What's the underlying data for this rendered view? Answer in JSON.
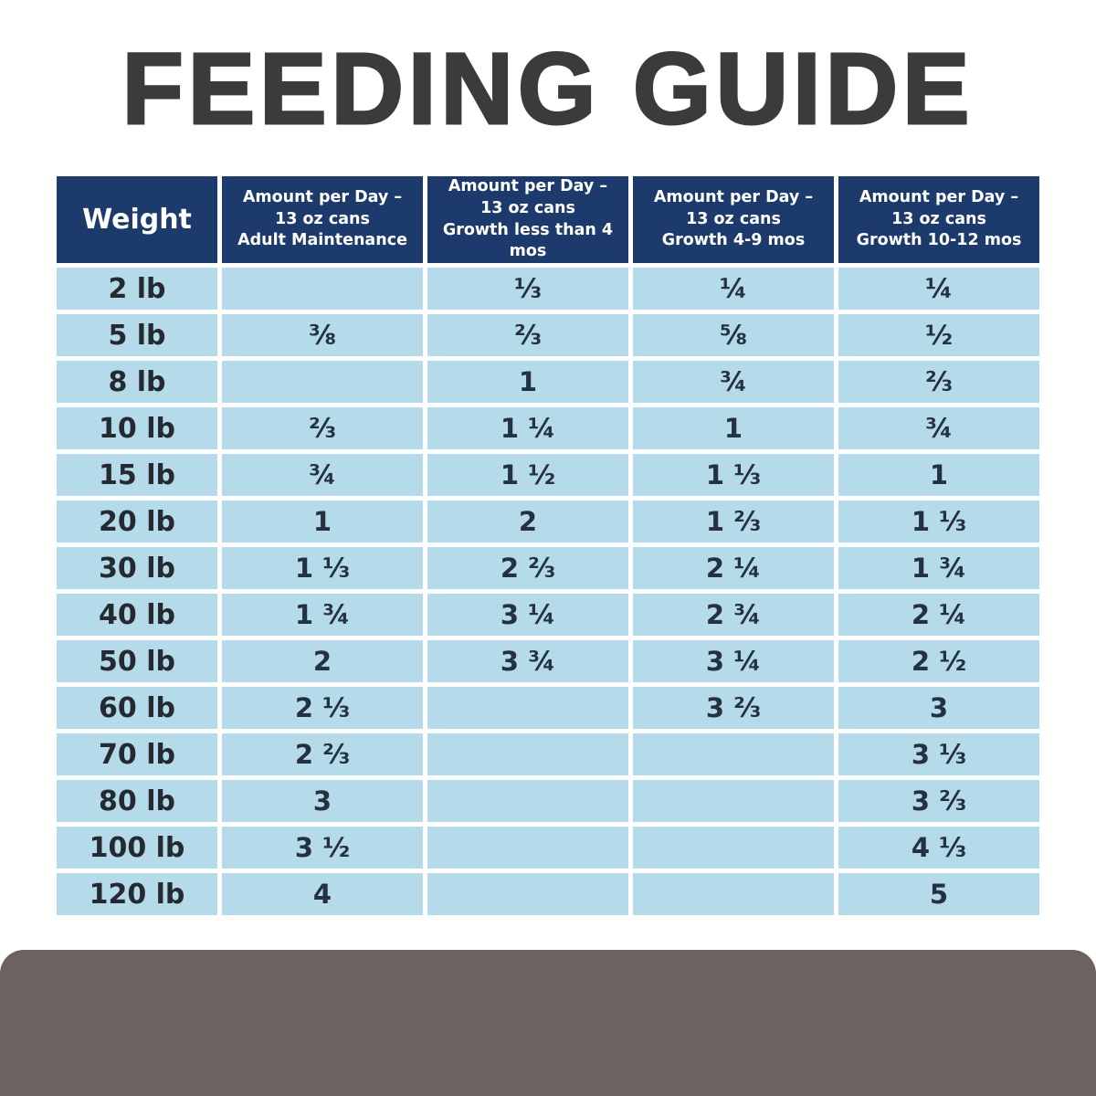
{
  "title": "FEEDING GUIDE",
  "chart_data": {
    "type": "table",
    "title": "FEEDING GUIDE",
    "columns": [
      "Weight",
      "Amount per Day –\n13 oz cans\nAdult Maintenance",
      "Amount per Day –\n13 oz cans\nGrowth less than 4 mos",
      "Amount per Day –\n13 oz cans\nGrowth 4-9 mos",
      "Amount per Day –\n13 oz cans\nGrowth 10-12 mos"
    ],
    "rows": [
      {
        "weight": "2 lb",
        "values": [
          "",
          "⅓",
          "¼",
          "¼"
        ]
      },
      {
        "weight": "5 lb",
        "values": [
          "⅜",
          "⅔",
          "⅝",
          "½"
        ]
      },
      {
        "weight": "8 lb",
        "values": [
          "",
          "1",
          "¾",
          "⅔"
        ]
      },
      {
        "weight": "10 lb",
        "values": [
          "⅔",
          "1 ¼",
          "1",
          "¾"
        ]
      },
      {
        "weight": "15 lb",
        "values": [
          "¾",
          "1 ½",
          "1 ⅓",
          "1"
        ]
      },
      {
        "weight": "20 lb",
        "values": [
          "1",
          "2",
          "1 ⅔",
          "1 ⅓"
        ]
      },
      {
        "weight": "30 lb",
        "values": [
          "1 ⅓",
          "2 ⅔",
          "2 ¼",
          "1 ¾"
        ]
      },
      {
        "weight": "40 lb",
        "values": [
          "1 ¾",
          "3 ¼",
          "2 ¾",
          "2 ¼"
        ]
      },
      {
        "weight": "50 lb",
        "values": [
          "2",
          "3 ¾",
          "3 ¼",
          "2 ½"
        ]
      },
      {
        "weight": "60 lb",
        "values": [
          "2 ⅓",
          "",
          "3 ⅔",
          "3"
        ]
      },
      {
        "weight": "70 lb",
        "values": [
          "2 ⅔",
          "",
          "",
          "3 ⅓"
        ]
      },
      {
        "weight": "80 lb",
        "values": [
          "3",
          "",
          "",
          "3 ⅔"
        ]
      },
      {
        "weight": "100 lb",
        "values": [
          "3 ½",
          "",
          "",
          "4 ⅓"
        ]
      },
      {
        "weight": "120 lb",
        "values": [
          "4",
          "",
          "",
          "5"
        ]
      }
    ],
    "layout": {
      "grid": "white gaps between all cells",
      "legend": "none"
    }
  },
  "colors": {
    "header_navy": "#1c3a6b",
    "cell_light_blue": "#b5daea",
    "title_charcoal": "#3b3b3d",
    "value_text": "#233140",
    "bottom_panel_gray": "#6c6361",
    "page_background": "#ffffff"
  }
}
